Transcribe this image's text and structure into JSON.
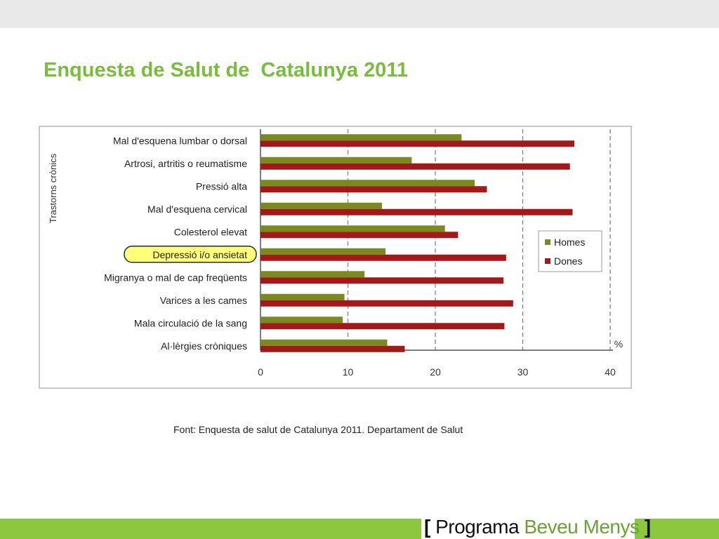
{
  "page": {
    "title": "Enquesta de Salut de  Catalunya 2011",
    "source": "Font: Enquesta de salut de Catalunya 2011. Departament de Salut",
    "brand": {
      "open": "[",
      "word1": "Programa",
      "word2": "Beveu Menys",
      "close": "]"
    }
  },
  "colors": {
    "title": "#79bd3c",
    "band_bottom": "#8dc63f",
    "homes": "#7a8a1e",
    "dones": "#a31818",
    "highlight_fill": "#ffff7a",
    "highlight_stroke": "#2a2a2a"
  },
  "chart_data": {
    "type": "bar",
    "orientation": "horizontal",
    "ylabel": "Trastorns crònics",
    "x_unit": "%",
    "xlim": [
      0,
      40
    ],
    "x_ticks": [
      0,
      10,
      20,
      30,
      40
    ],
    "grid": "vertical dashed",
    "legend_position": "right",
    "categories": [
      "Mal d'esquena lumbar o dorsal",
      "Artrosi, artritis o reumatisme",
      "Pressió alta",
      "Mal d'esquena cervical",
      "Colesterol elevat",
      "Depressió i/o ansietat",
      "Migranya o mal de cap freqüents",
      "Varices a les cames",
      "Mala circulació de la sang",
      "Al·lèrgies cròniques"
    ],
    "highlighted_category": "Depressió i/o ansietat",
    "series": [
      {
        "name": "Homes",
        "values": [
          23.0,
          17.3,
          24.5,
          13.9,
          21.1,
          14.3,
          11.9,
          9.6,
          9.4,
          14.5
        ]
      },
      {
        "name": "Dones",
        "values": [
          35.9,
          35.4,
          25.9,
          35.7,
          22.6,
          28.1,
          27.8,
          28.9,
          27.9,
          16.5
        ]
      }
    ]
  }
}
